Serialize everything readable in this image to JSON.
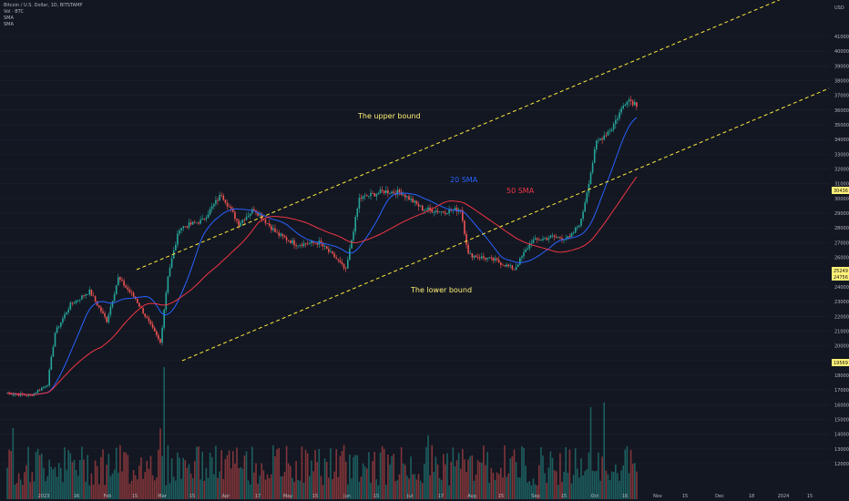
{
  "header": {
    "symbol": "Bitcoin / U.S. Dollar, 1D, BITSTAMP",
    "volume_label": "Vol · BTC",
    "sma1_label": "SMA",
    "sma2_label": "SMA"
  },
  "annotations": {
    "upper": "The upper bound",
    "lower": "The lower bound",
    "sma20": "20 SMA",
    "sma50": "50 SMA"
  },
  "colors": {
    "background": "#131722",
    "up": "#26a69a",
    "down": "#ef5350",
    "sma20": "#2962ff",
    "sma50": "#f23645",
    "channel": "#ffeb3b",
    "highlight": "#fff176"
  },
  "chart_data": {
    "type": "candlestick",
    "currency": "USD",
    "y_ticks": [
      12000,
      13000,
      14000,
      15000,
      16000,
      17000,
      18000,
      19000,
      20000,
      21000,
      22000,
      23000,
      24000,
      25000,
      26000,
      27000,
      28000,
      29000,
      30000,
      31000,
      32000,
      33000,
      34000,
      35000,
      36000,
      37000,
      38000,
      39000,
      40000,
      41000
    ],
    "ylim": [
      11500,
      42000
    ],
    "price_badges": [
      "30436",
      "25249",
      "24756",
      "19569"
    ],
    "x_labels": [
      "2023",
      "16",
      "Feb",
      "15",
      "Mar",
      "15",
      "Apr",
      "17",
      "May",
      "15",
      "Jun",
      "15",
      "Jul",
      "17",
      "Aug",
      "15",
      "Sep",
      "15",
      "Oct",
      "16",
      "Nov",
      "15",
      "Dec",
      "18",
      "2024",
      "15"
    ],
    "closes": [
      {
        "date": "2022-12-20",
        "close": 16800
      },
      {
        "date": "2023-01-01",
        "close": 16600
      },
      {
        "date": "2023-01-10",
        "close": 17400
      },
      {
        "date": "2023-01-14",
        "close": 20900
      },
      {
        "date": "2023-01-22",
        "close": 22800
      },
      {
        "date": "2023-02-01",
        "close": 23700
      },
      {
        "date": "2023-02-10",
        "close": 21700
      },
      {
        "date": "2023-02-16",
        "close": 24600
      },
      {
        "date": "2023-02-25",
        "close": 23200
      },
      {
        "date": "2023-03-10",
        "close": 20200
      },
      {
        "date": "2023-03-14",
        "close": 24800
      },
      {
        "date": "2023-03-20",
        "close": 28000
      },
      {
        "date": "2023-04-01",
        "close": 28500
      },
      {
        "date": "2023-04-11",
        "close": 30300
      },
      {
        "date": "2023-04-20",
        "close": 28300
      },
      {
        "date": "2023-04-28",
        "close": 29300
      },
      {
        "date": "2023-05-10",
        "close": 27600
      },
      {
        "date": "2023-05-20",
        "close": 26900
      },
      {
        "date": "2023-06-01",
        "close": 27000
      },
      {
        "date": "2023-06-10",
        "close": 25900
      },
      {
        "date": "2023-06-15",
        "close": 25100
      },
      {
        "date": "2023-06-22",
        "close": 30000
      },
      {
        "date": "2023-07-05",
        "close": 30500
      },
      {
        "date": "2023-07-14",
        "close": 30400
      },
      {
        "date": "2023-07-25",
        "close": 29300
      },
      {
        "date": "2023-08-05",
        "close": 29100
      },
      {
        "date": "2023-08-14",
        "close": 29300
      },
      {
        "date": "2023-08-18",
        "close": 26200
      },
      {
        "date": "2023-09-01",
        "close": 25800
      },
      {
        "date": "2023-09-11",
        "close": 25200
      },
      {
        "date": "2023-09-20",
        "close": 27100
      },
      {
        "date": "2023-10-01",
        "close": 27400
      },
      {
        "date": "2023-10-10",
        "close": 27300
      },
      {
        "date": "2023-10-16",
        "close": 28500
      },
      {
        "date": "2023-10-24",
        "close": 33800
      },
      {
        "date": "2023-11-01",
        "close": 34800
      },
      {
        "date": "2023-11-09",
        "close": 36800
      },
      {
        "date": "2023-11-14",
        "close": 36400
      }
    ]
  }
}
